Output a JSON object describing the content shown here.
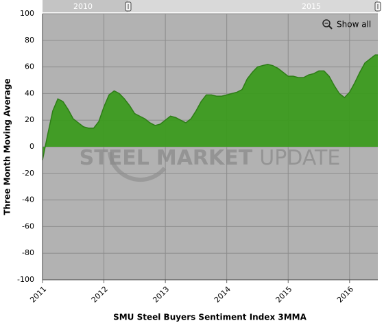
{
  "chart_data": {
    "type": "area",
    "x_title": "SMU Steel Buyers Sentiment Index 3MMA",
    "y_title": "Three Month Moving Average",
    "watermark": [
      "STEEL",
      "MARKET",
      "UPDATE"
    ],
    "navigator_labels": [
      "2010",
      "2015"
    ],
    "button": "Show all",
    "xlim": [
      2011,
      2016.46
    ],
    "xticks": [
      2011,
      2012,
      2013,
      2014,
      2015,
      2016
    ],
    "ylim": [
      -100,
      100
    ],
    "yticks": [
      -100,
      -80,
      -60,
      -40,
      -20,
      0,
      20,
      40,
      60,
      80,
      100
    ],
    "grid": true,
    "background": "#b2b2b2",
    "series": [
      {
        "name": "SMU Steel Buyers Sentiment Index 3MMA",
        "color": "#3c9b1f",
        "x": [
          2011,
          2011.083,
          2011.167,
          2011.25,
          2011.333,
          2011.417,
          2011.5,
          2011.583,
          2011.667,
          2011.75,
          2011.833,
          2011.917,
          2012,
          2012.083,
          2012.167,
          2012.25,
          2012.333,
          2012.417,
          2012.5,
          2012.583,
          2012.667,
          2012.75,
          2012.833,
          2012.917,
          2013,
          2013.083,
          2013.167,
          2013.25,
          2013.333,
          2013.417,
          2013.5,
          2013.583,
          2013.667,
          2013.75,
          2013.833,
          2013.917,
          2014,
          2014.083,
          2014.167,
          2014.25,
          2014.333,
          2014.417,
          2014.5,
          2014.583,
          2014.667,
          2014.75,
          2014.833,
          2014.917,
          2015,
          2015.083,
          2015.167,
          2015.25,
          2015.333,
          2015.417,
          2015.5,
          2015.583,
          2015.667,
          2015.75,
          2015.833,
          2015.917,
          2016,
          2016.083,
          2016.167,
          2016.25,
          2016.333,
          2016.417,
          2016.46
        ],
        "values": [
          -10,
          9,
          27,
          36,
          34,
          28,
          21,
          18,
          15,
          14,
          14,
          19,
          30,
          39,
          42,
          40,
          36,
          31,
          25,
          23,
          21,
          18,
          16,
          17,
          20,
          23,
          22,
          20,
          18,
          21,
          27,
          34,
          39,
          39,
          38,
          38,
          39,
          40,
          41,
          43,
          51,
          56,
          60,
          61,
          62,
          61,
          59,
          56,
          53,
          53,
          52,
          52,
          54,
          55,
          57,
          57,
          53,
          46,
          40,
          37,
          41,
          48,
          56,
          63,
          66,
          69,
          69
        ]
      }
    ]
  }
}
